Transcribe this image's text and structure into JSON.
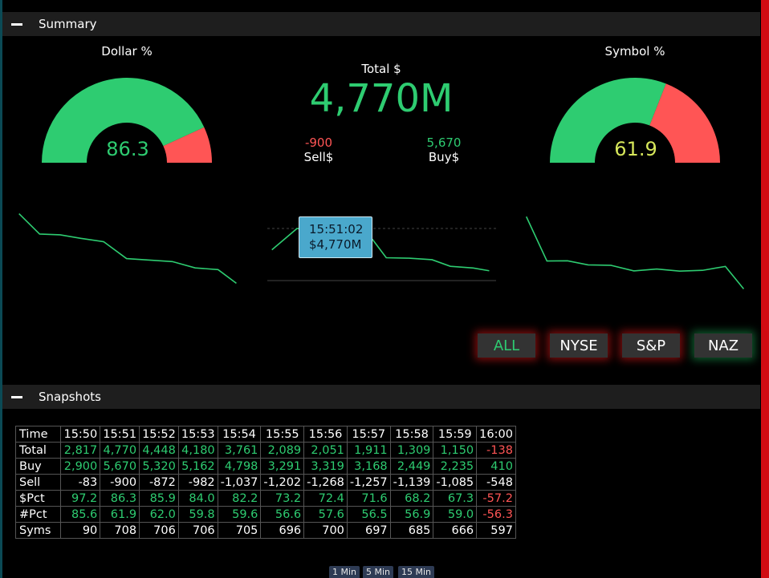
{
  "colors": {
    "positive": "#2ecc71",
    "negative": "#ff5555",
    "neutral_value": "#d6e65a",
    "tooltip_bg": "#4aa8cc",
    "button_bg": "#333333",
    "section_bar_bg": "#1e1e1e"
  },
  "summary": {
    "section_title": "Summary",
    "collapse_icon": "minus-icon",
    "dollar_gauge": {
      "label": "Dollar %",
      "value": "86.3",
      "fraction": 0.863
    },
    "total": {
      "label": "Total $",
      "value": "4,770M"
    },
    "sell": {
      "value": "-900",
      "label": "Sell$"
    },
    "buy": {
      "value": "5,670",
      "label": "Buy$"
    },
    "symbol_gauge": {
      "label": "Symbol %",
      "value": "61.9",
      "fraction": 0.619
    },
    "tooltip": {
      "time": "15:51:02",
      "value": "$4,770M"
    },
    "sparklines": {
      "dollar_pct": [
        97.2,
        86.3,
        85.9,
        84.0,
        82.2,
        73.2,
        72.4,
        71.6,
        68.2,
        67.3,
        -57.2
      ],
      "total": [
        2817,
        4770,
        4448,
        4180,
        3761,
        2089,
        2051,
        1911,
        1309,
        1150,
        -138
      ],
      "symbol_pct": [
        85.6,
        61.9,
        62.0,
        59.8,
        59.6,
        56.6,
        57.6,
        56.5,
        56.9,
        59.0,
        -56.3
      ]
    },
    "exchanges": [
      {
        "label": "ALL",
        "active": true
      },
      {
        "label": "NYSE",
        "active": false
      },
      {
        "label": "S&P",
        "active": false
      },
      {
        "label": "NAZ",
        "active": false
      }
    ]
  },
  "snapshots": {
    "section_title": "Snapshots",
    "collapse_icon": "minus-icon",
    "columns": [
      "Time",
      "15:50",
      "15:51",
      "15:52",
      "15:53",
      "15:54",
      "15:55",
      "15:56",
      "15:57",
      "15:58",
      "15:59",
      "16:00"
    ],
    "rows": [
      {
        "label": "Total",
        "values": [
          "2,817",
          "4,770",
          "4,448",
          "4,180",
          "3,761",
          "2,089",
          "2,051",
          "1,911",
          "1,309",
          "1,150",
          "-138"
        ]
      },
      {
        "label": "Buy",
        "values": [
          "2,900",
          "5,670",
          "5,320",
          "5,162",
          "4,798",
          "3,291",
          "3,319",
          "3,168",
          "2,449",
          "2,235",
          "410"
        ]
      },
      {
        "label": "Sell",
        "values": [
          "-83",
          "-900",
          "-872",
          "-982",
          "-1,037",
          "-1,202",
          "-1,268",
          "-1,257",
          "-1,139",
          "-1,085",
          "-548"
        ]
      },
      {
        "label": "$Pct",
        "values": [
          "97.2",
          "86.3",
          "85.9",
          "84.0",
          "82.2",
          "73.2",
          "72.4",
          "71.6",
          "68.2",
          "67.3",
          "-57.2"
        ]
      },
      {
        "label": "#Pct",
        "values": [
          "85.6",
          "61.9",
          "62.0",
          "59.8",
          "59.6",
          "56.6",
          "57.6",
          "56.5",
          "56.9",
          "59.0",
          "-56.3"
        ]
      },
      {
        "label": "Syms",
        "values": [
          "90",
          "708",
          "706",
          "706",
          "705",
          "696",
          "700",
          "697",
          "685",
          "666",
          "597"
        ]
      }
    ],
    "intervals": [
      "1 Min",
      "5 Min",
      "15 Min"
    ]
  }
}
